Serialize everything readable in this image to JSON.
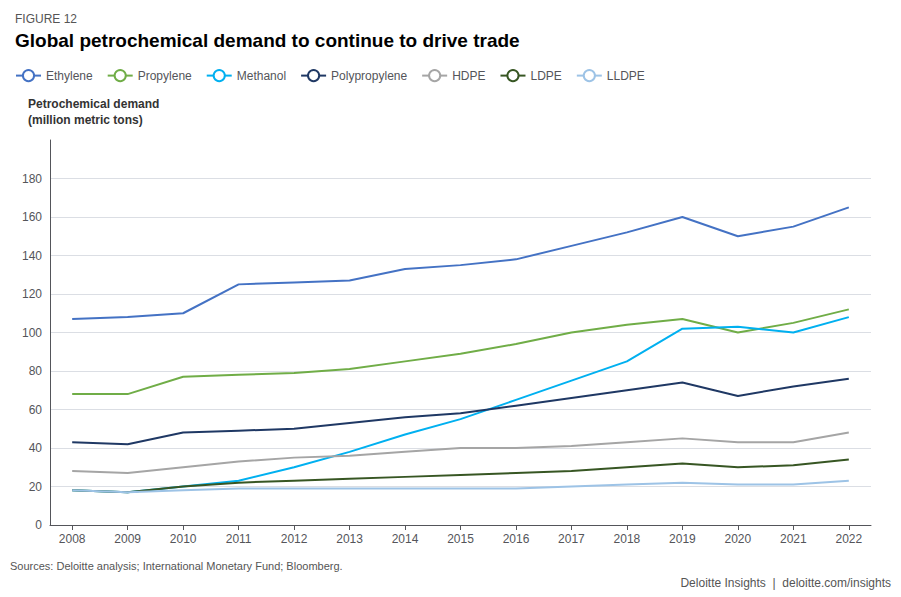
{
  "chart_data": {
    "type": "line",
    "subtitle": "FIGURE 12",
    "title": "Global petrochemical demand to continue to drive trade",
    "ylabel": "Petrochemical demand\n(million metric tons)",
    "annotations": [
      "Sources: Deloitte analysis; International Monetary Fund; Bloomberg.",
      "Deloitte Insights  |  deloitte.com/insights"
    ],
    "x": [
      2008,
      2009,
      2010,
      2011,
      2012,
      2013,
      2014,
      2015,
      2016,
      2017,
      2018,
      2019,
      2020,
      2021,
      2022
    ],
    "xlim": [
      2007.6,
      2022.4
    ],
    "xticks": [
      2008,
      2009,
      2010,
      2011,
      2012,
      2013,
      2014,
      2015,
      2016,
      2017,
      2018,
      2019,
      2020,
      2021,
      2022
    ],
    "ylim": [
      0,
      200
    ],
    "yticks": [
      0,
      20,
      40,
      60,
      80,
      100,
      120,
      140,
      160,
      180
    ],
    "grid": true,
    "legend": "upper left",
    "series": [
      {
        "name": "Ethylene",
        "color": "#4472C4",
        "values": [
          107,
          108,
          110,
          125,
          126,
          127,
          133,
          135,
          138,
          145,
          152,
          160,
          150,
          155,
          165
        ]
      },
      {
        "name": "Propylene",
        "color": "#70AD47",
        "values": [
          68,
          68,
          77,
          78,
          79,
          81,
          85,
          89,
          94,
          100,
          104,
          107,
          100,
          105,
          112
        ]
      },
      {
        "name": "Methanol",
        "color": "#00B0F0",
        "values": [
          18,
          17,
          20,
          23,
          30,
          38,
          47,
          55,
          65,
          75,
          85,
          102,
          103,
          100,
          108
        ]
      },
      {
        "name": "Polypropylene",
        "color": "#1F3864",
        "values": [
          43,
          42,
          48,
          49,
          50,
          53,
          56,
          58,
          62,
          66,
          70,
          74,
          67,
          72,
          76
        ]
      },
      {
        "name": "HDPE",
        "color": "#A5A5A5",
        "values": [
          28,
          27,
          30,
          33,
          35,
          36,
          38,
          40,
          40,
          41,
          43,
          45,
          43,
          43,
          48
        ]
      },
      {
        "name": "LDPE",
        "color": "#375623",
        "values": [
          18,
          17,
          20,
          22,
          23,
          24,
          25,
          26,
          27,
          28,
          30,
          32,
          30,
          31,
          34
        ]
      },
      {
        "name": "LLDPE",
        "color": "#9DC3E6",
        "values": [
          18,
          17,
          18,
          19,
          19,
          19,
          19,
          19,
          19,
          20,
          21,
          22,
          21,
          21,
          23
        ]
      }
    ]
  }
}
